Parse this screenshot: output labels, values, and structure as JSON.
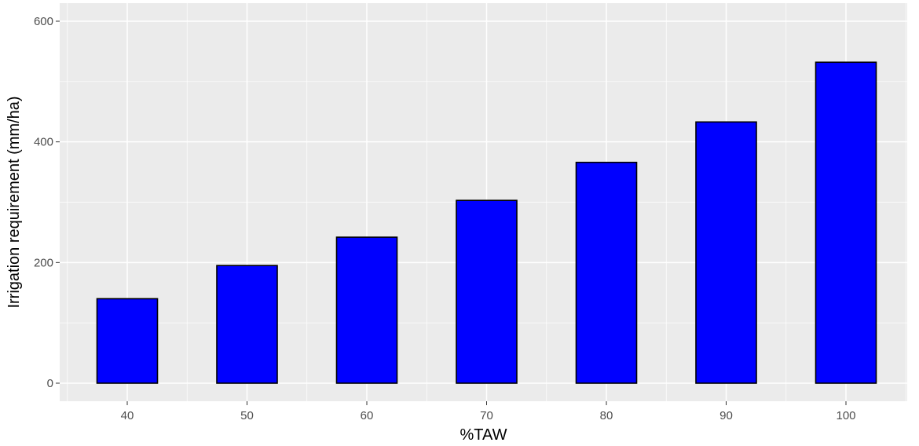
{
  "chart_data": {
    "type": "bar",
    "title": "",
    "xlabel": "%TAW",
    "ylabel": "Irrigation requirement (mm/ha)",
    "categories": [
      "40",
      "50",
      "60",
      "70",
      "80",
      "90",
      "100"
    ],
    "values": [
      140,
      195,
      242,
      303,
      366,
      433,
      532
    ],
    "ylim": [
      0,
      600
    ],
    "yticks": [
      "0",
      "200",
      "400",
      "600"
    ],
    "grid": true,
    "legend": "none",
    "colors": {
      "bar_fill": "#0000ff",
      "bar_stroke": "#000000",
      "panel_background": "#ebebeb",
      "grid_line": "#ffffff"
    }
  }
}
